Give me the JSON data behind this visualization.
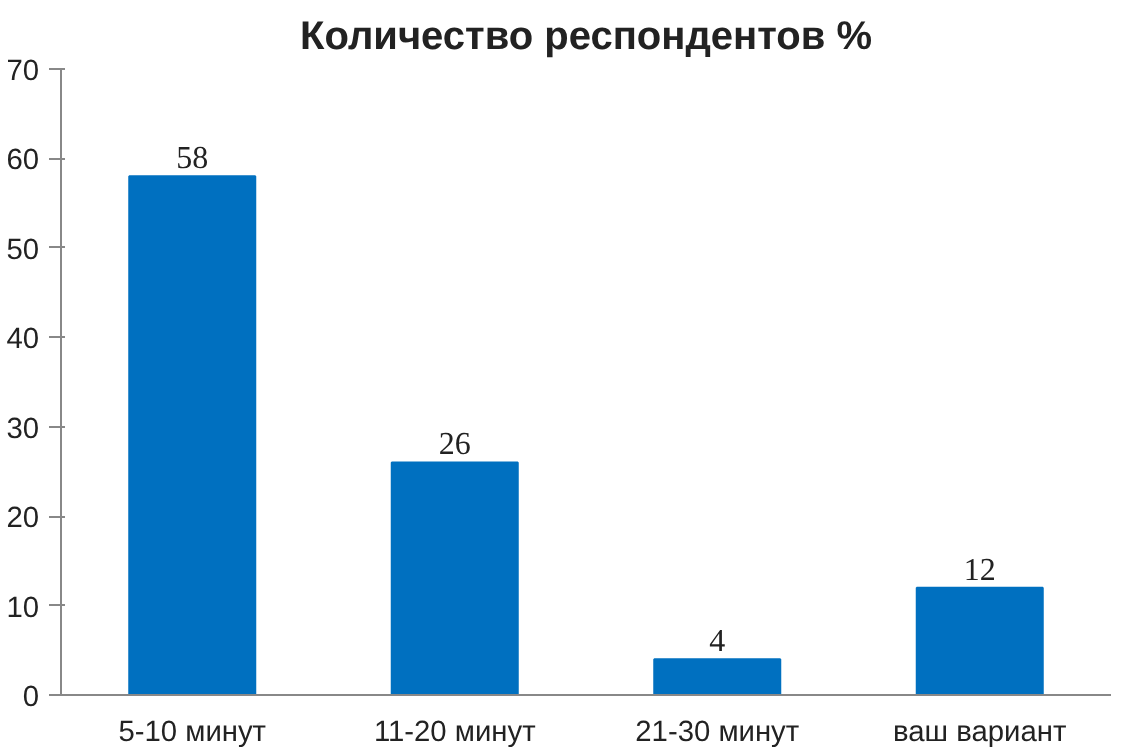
{
  "chart_data": {
    "type": "bar",
    "title": "Количество респондентов %",
    "categories": [
      "5-10 минут",
      "11-20 минут",
      "21-30 минут",
      "ваш вариант"
    ],
    "values": [
      58,
      26,
      4,
      12
    ],
    "color": "#0070c0",
    "ylim": [
      0,
      70
    ],
    "yticks": [
      0,
      10,
      20,
      30,
      40,
      50,
      60,
      70
    ],
    "grid": false,
    "data_labels": true
  }
}
